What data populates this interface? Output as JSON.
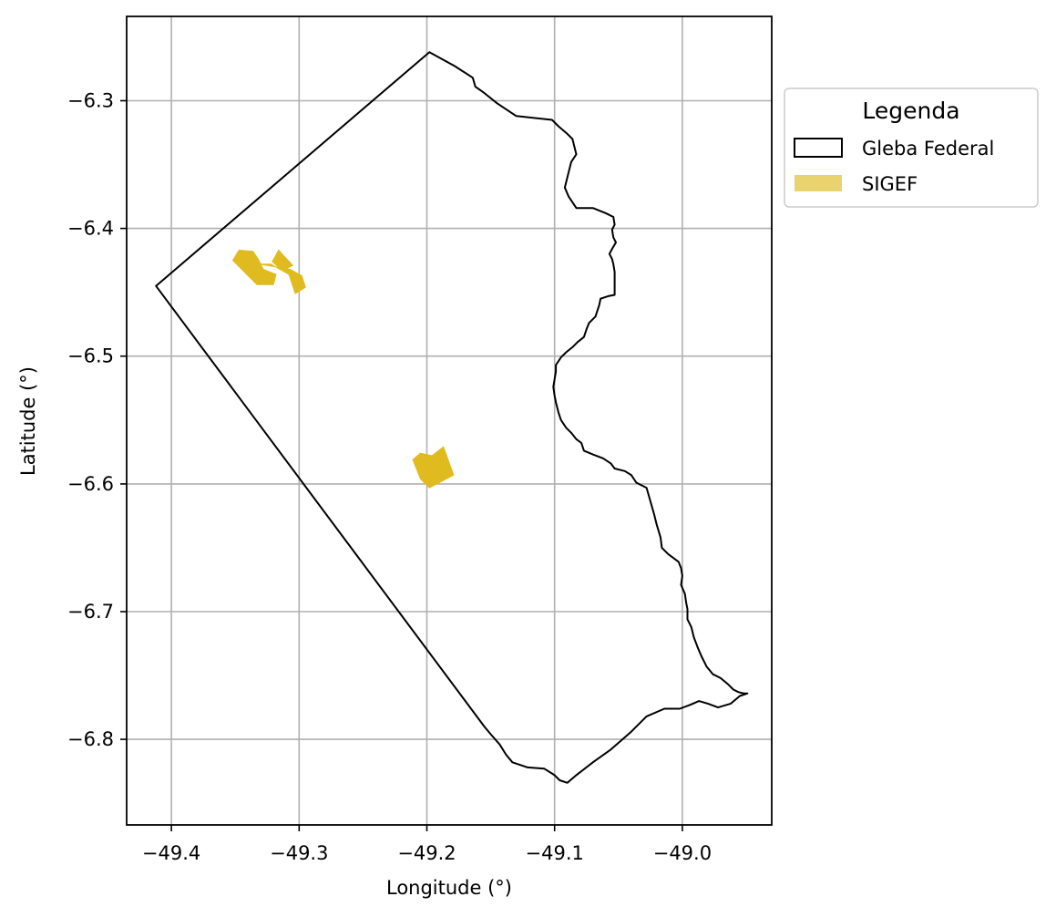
{
  "chart_data": {
    "type": "map",
    "xlabel": "Longitude (°)",
    "ylabel": "Latitude (°)",
    "xlim": [
      -49.435,
      -48.93
    ],
    "ylim": [
      -6.867,
      -6.234
    ],
    "x_ticks": [
      -49.4,
      -49.3,
      -49.2,
      -49.1,
      -49.0
    ],
    "x_tick_labels": [
      "−49.4",
      "−49.3",
      "−49.2",
      "−49.1",
      "−49.0"
    ],
    "y_ticks": [
      -6.3,
      -6.4,
      -6.5,
      -6.6,
      -6.7,
      -6.8
    ],
    "y_tick_labels": [
      "−6.3",
      "−6.4",
      "−6.5",
      "−6.6",
      "−6.7",
      "−6.8"
    ],
    "grid": true,
    "legend": {
      "title": "Legenda",
      "placement": "outside-upper-right",
      "entries": [
        {
          "label": "Gleba Federal",
          "style": "outline",
          "color": "#000000"
        },
        {
          "label": "SIGEF",
          "style": "fill",
          "color": "#e9d36f"
        }
      ]
    },
    "layers": [
      {
        "name": "Gleba Federal",
        "style": "outline",
        "color": "#000000",
        "coordinates": [
          [
            -49.198,
            -6.262
          ],
          [
            -49.178,
            -6.273
          ],
          [
            -49.164,
            -6.282
          ],
          [
            -49.162,
            -6.289
          ],
          [
            -49.155,
            -6.294
          ],
          [
            -49.145,
            -6.302
          ],
          [
            -49.13,
            -6.312
          ],
          [
            -49.102,
            -6.315
          ],
          [
            -49.097,
            -6.32
          ],
          [
            -49.09,
            -6.326
          ],
          [
            -49.086,
            -6.33
          ],
          [
            -49.083,
            -6.342
          ],
          [
            -49.087,
            -6.348
          ],
          [
            -49.092,
            -6.368
          ],
          [
            -49.089,
            -6.375
          ],
          [
            -49.083,
            -6.384
          ],
          [
            -49.07,
            -6.384
          ],
          [
            -49.06,
            -6.388
          ],
          [
            -49.054,
            -6.391
          ],
          [
            -49.053,
            -6.397
          ],
          [
            -49.055,
            -6.401
          ],
          [
            -49.054,
            -6.407
          ],
          [
            -49.052,
            -6.411
          ],
          [
            -49.055,
            -6.416
          ],
          [
            -49.057,
            -6.42
          ],
          [
            -49.055,
            -6.424
          ],
          [
            -49.054,
            -6.428
          ],
          [
            -49.053,
            -6.434
          ],
          [
            -49.053,
            -6.441
          ],
          [
            -49.053,
            -6.446
          ],
          [
            -49.053,
            -6.452
          ],
          [
            -49.058,
            -6.453
          ],
          [
            -49.064,
            -6.455
          ],
          [
            -49.065,
            -6.46
          ],
          [
            -49.068,
            -6.469
          ],
          [
            -49.073,
            -6.474
          ],
          [
            -49.075,
            -6.479
          ],
          [
            -49.077,
            -6.485
          ],
          [
            -49.082,
            -6.489
          ],
          [
            -49.086,
            -6.493
          ],
          [
            -49.091,
            -6.497
          ],
          [
            -49.095,
            -6.501
          ],
          [
            -49.099,
            -6.507
          ],
          [
            -49.099,
            -6.512
          ],
          [
            -49.1,
            -6.518
          ],
          [
            -49.101,
            -6.524
          ],
          [
            -49.1,
            -6.531
          ],
          [
            -49.099,
            -6.536
          ],
          [
            -49.097,
            -6.544
          ],
          [
            -49.095,
            -6.55
          ],
          [
            -49.091,
            -6.556
          ],
          [
            -49.087,
            -6.56
          ],
          [
            -49.083,
            -6.565
          ],
          [
            -49.079,
            -6.568
          ],
          [
            -49.077,
            -6.574
          ],
          [
            -49.07,
            -6.577
          ],
          [
            -49.062,
            -6.58
          ],
          [
            -49.056,
            -6.584
          ],
          [
            -49.053,
            -6.588
          ],
          [
            -49.045,
            -6.59
          ],
          [
            -49.04,
            -6.593
          ],
          [
            -49.036,
            -6.599
          ],
          [
            -49.028,
            -6.603
          ],
          [
            -49.026,
            -6.61
          ],
          [
            -49.024,
            -6.617
          ],
          [
            -49.022,
            -6.624
          ],
          [
            -49.02,
            -6.632
          ],
          [
            -49.017,
            -6.642
          ],
          [
            -49.016,
            -6.65
          ],
          [
            -49.011,
            -6.655
          ],
          [
            -49.003,
            -6.661
          ],
          [
            -49.001,
            -6.666
          ],
          [
            -49.0,
            -6.672
          ],
          [
            -49.001,
            -6.679
          ],
          [
            -48.998,
            -6.686
          ],
          [
            -48.997,
            -6.693
          ],
          [
            -48.996,
            -6.698
          ],
          [
            -48.996,
            -6.706
          ],
          [
            -48.993,
            -6.712
          ],
          [
            -48.991,
            -6.72
          ],
          [
            -48.988,
            -6.728
          ],
          [
            -48.985,
            -6.735
          ],
          [
            -48.981,
            -6.743
          ],
          [
            -48.976,
            -6.749
          ],
          [
            -48.97,
            -6.752
          ],
          [
            -48.964,
            -6.757
          ],
          [
            -48.96,
            -6.761
          ],
          [
            -48.956,
            -6.763
          ],
          [
            -48.952,
            -6.764
          ],
          [
            -48.949,
            -6.764
          ],
          [
            -48.955,
            -6.766
          ],
          [
            -48.962,
            -6.772
          ],
          [
            -48.972,
            -6.775
          ],
          [
            -48.98,
            -6.772
          ],
          [
            -48.987,
            -6.77
          ],
          [
            -48.994,
            -6.773
          ],
          [
            -49.002,
            -6.776
          ],
          [
            -49.014,
            -6.776
          ],
          [
            -49.028,
            -6.782
          ],
          [
            -49.04,
            -6.794
          ],
          [
            -49.056,
            -6.808
          ],
          [
            -49.07,
            -6.818
          ],
          [
            -49.083,
            -6.828
          ],
          [
            -49.09,
            -6.834
          ],
          [
            -49.096,
            -6.832
          ],
          [
            -49.1,
            -6.828
          ],
          [
            -49.108,
            -6.823
          ],
          [
            -49.121,
            -6.822
          ],
          [
            -49.133,
            -6.818
          ],
          [
            -49.138,
            -6.812
          ],
          [
            -49.143,
            -6.804
          ],
          [
            -49.15,
            -6.796
          ],
          [
            -49.155,
            -6.79
          ],
          [
            -49.412,
            -6.445
          ],
          [
            -49.198,
            -6.262
          ]
        ]
      },
      {
        "name": "SIGEF",
        "style": "fill",
        "color": "#e0bb20",
        "polygons": [
          [
            [
              -49.352,
              -6.425
            ],
            [
              -49.347,
              -6.417
            ],
            [
              -49.336,
              -6.418
            ],
            [
              -49.332,
              -6.424
            ],
            [
              -49.328,
              -6.432
            ],
            [
              -49.318,
              -6.436
            ],
            [
              -49.32,
              -6.444
            ],
            [
              -49.333,
              -6.444
            ]
          ],
          [
            [
              -49.331,
              -6.428
            ],
            [
              -49.322,
              -6.428
            ],
            [
              -49.308,
              -6.436
            ],
            [
              -49.303,
              -6.451
            ],
            [
              -49.295,
              -6.446
            ],
            [
              -49.298,
              -6.437
            ],
            [
              -49.307,
              -6.432
            ]
          ],
          [
            [
              -49.316,
              -6.417
            ],
            [
              -49.321,
              -6.426
            ],
            [
              -49.313,
              -6.433
            ],
            [
              -49.305,
              -6.429
            ]
          ],
          [
            [
              -49.211,
              -6.581
            ],
            [
              -49.205,
              -6.576
            ],
            [
              -49.196,
              -6.578
            ],
            [
              -49.187,
              -6.571
            ],
            [
              -49.179,
              -6.593
            ],
            [
              -49.198,
              -6.603
            ],
            [
              -49.205,
              -6.596
            ]
          ]
        ]
      }
    ]
  }
}
